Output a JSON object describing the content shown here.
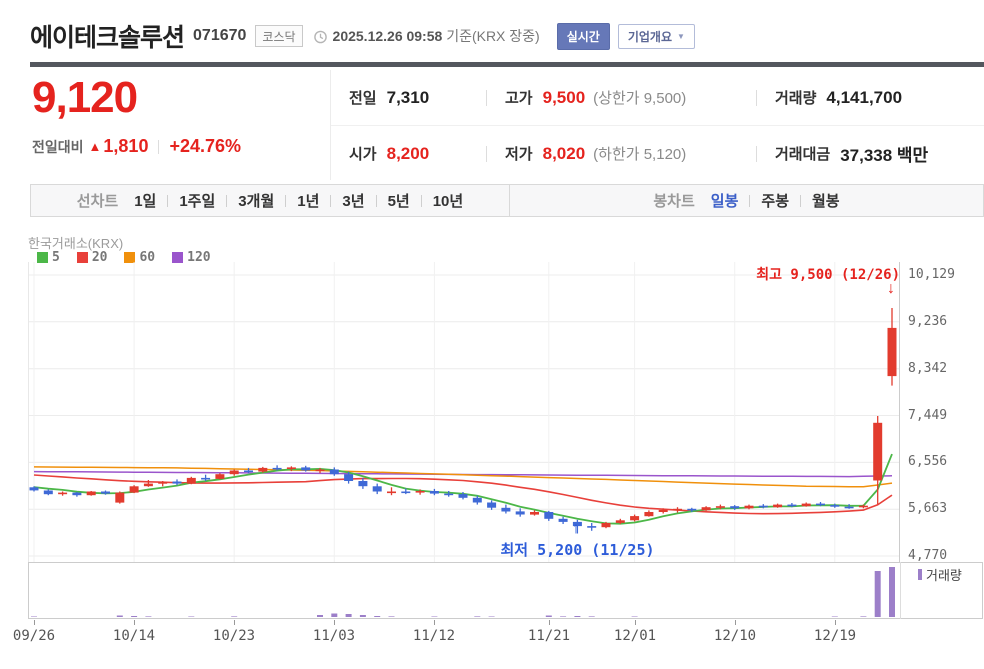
{
  "header": {
    "title": "에이테크솔루션",
    "stock_code": "071670",
    "market_badge": "코스닥",
    "timestamp": "2025.12.26 09:58",
    "timestamp_note": "기준(KRX 장중)",
    "realtime_button": "실시간",
    "company_overview_button": "기업개요",
    "dropdown_arrow": "▼"
  },
  "price_summary": {
    "current_price": "9,120",
    "change_label": "전일대비",
    "change_arrow": "▲",
    "change_value": "1,810",
    "change_percent": "+24.76%",
    "info": {
      "prev_close": {
        "label": "전일",
        "value": "7,310"
      },
      "high": {
        "label": "고가",
        "value": "9,500",
        "extra": "(상한가 9,500)"
      },
      "volume": {
        "label": "거래량",
        "value": "4,141,700"
      },
      "open": {
        "label": "시가",
        "value": "8,200"
      },
      "low": {
        "label": "저가",
        "value": "8,020",
        "extra": "(하한가 5,120)"
      },
      "trade_amount": {
        "label": "거래대금",
        "value": "37,338 백만"
      }
    }
  },
  "chart_tabs": {
    "line_group_label": "선차트",
    "line_tabs": [
      "1일",
      "1주일",
      "3개월",
      "1년",
      "3년",
      "5년",
      "10년"
    ],
    "candle_group_label": "봉차트",
    "candle_tabs": [
      "일봉",
      "주봉",
      "월봉"
    ],
    "selected_tab": "일봉"
  },
  "chart": {
    "source_label": "한국거래소(KRX)",
    "volume_legend_label": "거래량",
    "high_annotation": "최고 9,500 (12/26)",
    "low_annotation": "최저 5,200 (11/25)",
    "high_arrow": "↓",
    "low_arrow": "↑"
  },
  "chart_data": {
    "type": "candlestick",
    "y_ticks": [
      10129,
      9236,
      8342,
      7449,
      6556,
      5663,
      4770
    ],
    "x_ticks": [
      {
        "i": 0,
        "label": "09/26"
      },
      {
        "i": 7,
        "label": "10/14"
      },
      {
        "i": 14,
        "label": "10/23"
      },
      {
        "i": 21,
        "label": "11/03"
      },
      {
        "i": 28,
        "label": "11/12"
      },
      {
        "i": 36,
        "label": "11/21"
      },
      {
        "i": 42,
        "label": "12/01"
      },
      {
        "i": 49,
        "label": "12/10"
      },
      {
        "i": 56,
        "label": "12/19"
      }
    ],
    "ma_legend": [
      {
        "period": "5",
        "color": "#4cb748"
      },
      {
        "period": "20",
        "color": "#e8403a"
      },
      {
        "period": "60",
        "color": "#f0900c"
      },
      {
        "period": "120",
        "color": "#9a55cc"
      }
    ],
    "high_point": {
      "i": 60,
      "value": 9500
    },
    "low_point": {
      "i": 38,
      "value": 5200
    },
    "candles": [
      [
        6080,
        6100,
        6000,
        6020
      ],
      [
        6020,
        6040,
        5930,
        5950
      ],
      [
        5950,
        6000,
        5920,
        5980
      ],
      [
        5980,
        5990,
        5900,
        5930
      ],
      [
        5930,
        6010,
        5920,
        6000
      ],
      [
        6000,
        6020,
        5940,
        5960
      ],
      [
        5790,
        6000,
        5770,
        5980
      ],
      [
        5980,
        6120,
        5970,
        6100
      ],
      [
        6100,
        6220,
        6090,
        6150
      ],
      [
        6150,
        6200,
        6100,
        6180
      ],
      [
        6190,
        6230,
        6120,
        6150
      ],
      [
        6150,
        6280,
        6140,
        6260
      ],
      [
        6260,
        6320,
        6200,
        6240
      ],
      [
        6240,
        6350,
        6230,
        6330
      ],
      [
        6330,
        6420,
        6300,
        6400
      ],
      [
        6400,
        6450,
        6350,
        6380
      ],
      [
        6380,
        6470,
        6360,
        6450
      ],
      [
        6450,
        6500,
        6400,
        6430
      ],
      [
        6430,
        6480,
        6390,
        6460
      ],
      [
        6460,
        6490,
        6380,
        6400
      ],
      [
        6400,
        6450,
        6350,
        6420
      ],
      [
        6420,
        6460,
        6300,
        6330
      ],
      [
        6330,
        6380,
        6150,
        6200
      ],
      [
        6200,
        6260,
        6050,
        6100
      ],
      [
        6100,
        6150,
        5950,
        6000
      ],
      [
        5990,
        6080,
        5930,
        6000
      ],
      [
        6000,
        6060,
        5950,
        5980
      ],
      [
        5980,
        6040,
        5940,
        6010
      ],
      [
        6010,
        6050,
        5930,
        5960
      ],
      [
        5960,
        6010,
        5900,
        5950
      ],
      [
        5950,
        5990,
        5850,
        5880
      ],
      [
        5880,
        5920,
        5750,
        5790
      ],
      [
        5790,
        5830,
        5650,
        5690
      ],
      [
        5690,
        5750,
        5580,
        5620
      ],
      [
        5620,
        5680,
        5520,
        5560
      ],
      [
        5560,
        5640,
        5540,
        5610
      ],
      [
        5610,
        5630,
        5440,
        5480
      ],
      [
        5480,
        5520,
        5380,
        5420
      ],
      [
        5420,
        5460,
        5200,
        5340
      ],
      [
        5340,
        5400,
        5250,
        5320
      ],
      [
        5320,
        5420,
        5300,
        5400
      ],
      [
        5400,
        5480,
        5380,
        5450
      ],
      [
        5450,
        5560,
        5430,
        5530
      ],
      [
        5530,
        5640,
        5520,
        5610
      ],
      [
        5610,
        5680,
        5580,
        5650
      ],
      [
        5650,
        5700,
        5600,
        5670
      ],
      [
        5670,
        5690,
        5610,
        5640
      ],
      [
        5640,
        5720,
        5630,
        5700
      ],
      [
        5700,
        5750,
        5660,
        5720
      ],
      [
        5720,
        5740,
        5650,
        5680
      ],
      [
        5680,
        5750,
        5660,
        5730
      ],
      [
        5730,
        5760,
        5680,
        5700
      ],
      [
        5700,
        5770,
        5690,
        5750
      ],
      [
        5750,
        5780,
        5700,
        5720
      ],
      [
        5720,
        5790,
        5710,
        5770
      ],
      [
        5770,
        5800,
        5720,
        5740
      ],
      [
        5740,
        5770,
        5690,
        5710
      ],
      [
        5710,
        5760,
        5670,
        5700
      ],
      [
        5700,
        5750,
        5680,
        5730
      ],
      [
        6210,
        7440,
        5760,
        7310
      ],
      [
        8200,
        9500,
        8020,
        9120
      ]
    ],
    "volumes": [
      0.01,
      0.008,
      0.008,
      0.008,
      0.008,
      0.008,
      0.03,
      0.02,
      0.012,
      0.008,
      0.008,
      0.01,
      0.008,
      0.008,
      0.012,
      0.008,
      0.008,
      0.008,
      0.008,
      0.008,
      0.04,
      0.07,
      0.06,
      0.04,
      0.02,
      0.012,
      0.008,
      0.008,
      0.01,
      0.008,
      0.008,
      0.012,
      0.01,
      0.008,
      0.008,
      0.008,
      0.03,
      0.012,
      0.02,
      0.012,
      0.008,
      0.008,
      0.01,
      0.008,
      0.008,
      0.008,
      0.008,
      0.008,
      0.008,
      0.008,
      0.008,
      0.008,
      0.008,
      0.008,
      0.008,
      0.008,
      0.01,
      0.008,
      0.012,
      0.92,
      1.0
    ],
    "ma60_points": [
      [
        0,
        6470
      ],
      [
        10,
        6450
      ],
      [
        20,
        6400
      ],
      [
        30,
        6320
      ],
      [
        40,
        6230
      ],
      [
        48,
        6150
      ],
      [
        54,
        6100
      ],
      [
        58,
        6090
      ],
      [
        60,
        6160
      ]
    ],
    "ma120_points": [
      [
        0,
        6380
      ],
      [
        15,
        6355
      ],
      [
        30,
        6325
      ],
      [
        45,
        6300
      ],
      [
        57,
        6285
      ],
      [
        60,
        6300
      ]
    ],
    "ma5_seed": 6100,
    "ma20_seed": 6330,
    "colors": {
      "up": "#e23b2e",
      "down": "#3f69d6",
      "ma5": "#4cb748",
      "ma20": "#e8403a",
      "ma60": "#f0900c",
      "ma120": "#9a55cc",
      "volume": "#9c7fc9",
      "accent_red": "#e5231e",
      "accent_blue": "#2d5cd9"
    }
  }
}
